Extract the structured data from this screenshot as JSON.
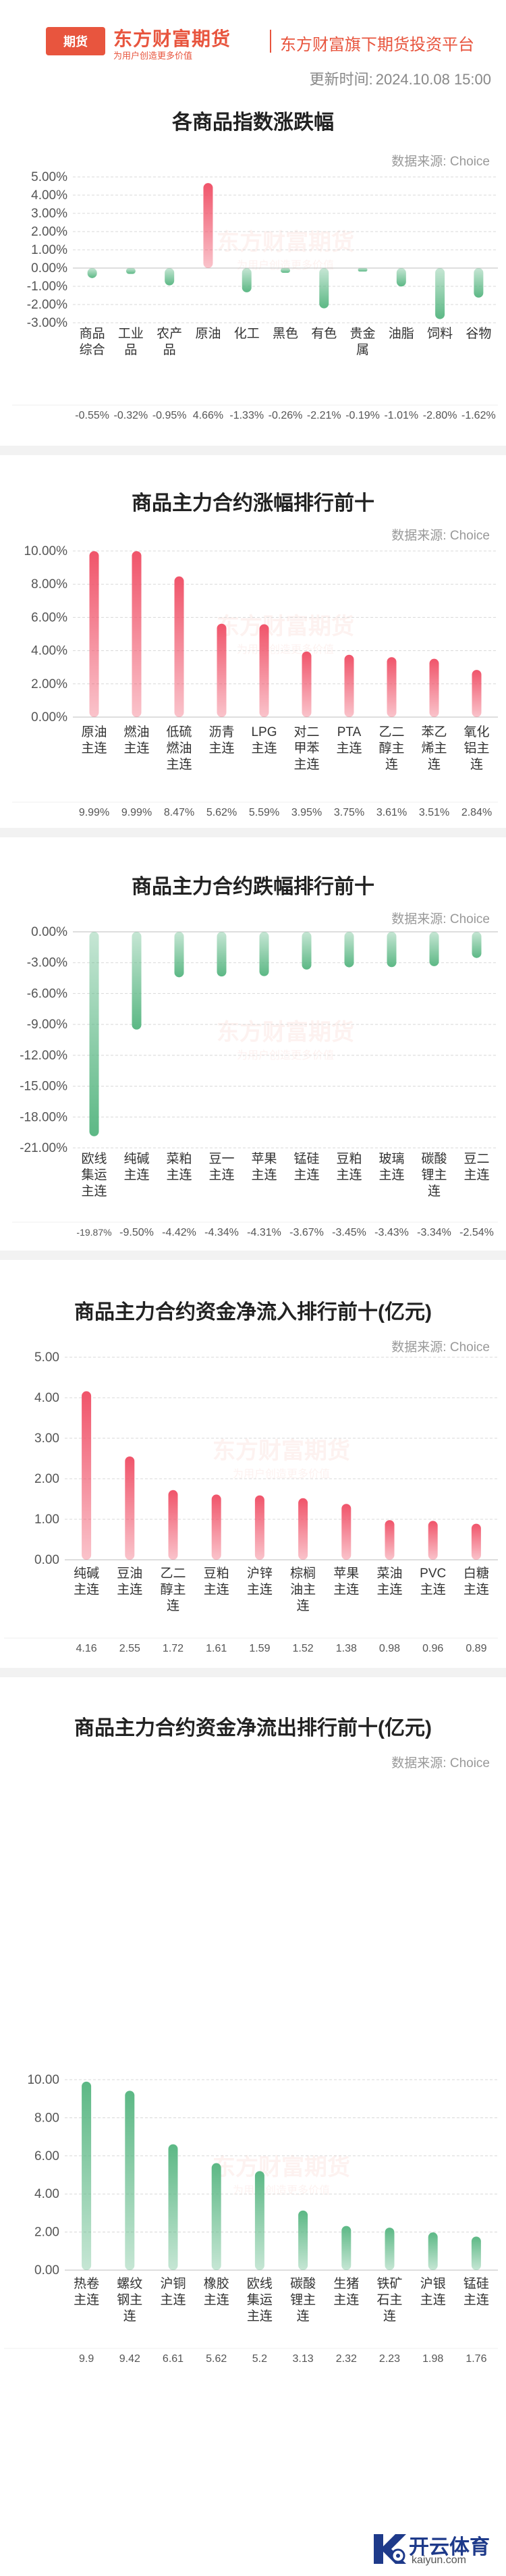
{
  "header": {
    "logo_badge": "期货",
    "brand_name": "东方财富期货",
    "slogan": "为用户创造更多价值",
    "platform": "东方财富旗下期货投资平台",
    "update_label": "更新时间:",
    "update_time": "2024.10.08 15:00"
  },
  "source_label": "数据来源: Choice",
  "watermark": {
    "name": "东方财富期货",
    "sub": "为用户创造更多价值"
  },
  "footer_logo": {
    "text": "开云体育",
    "url": "kaiyun.com"
  },
  "colors": {
    "up": "#f0546a",
    "down": "#5cb885",
    "accent": "#e8553e"
  },
  "chart_data": [
    {
      "type": "bar",
      "title": "各商品指数涨跌幅",
      "categories": [
        "商品\n综合",
        "工业\n品",
        "农产\n品",
        "原油",
        "化工",
        "黑色",
        "有色",
        "贵金\n属",
        "油脂",
        "饲料",
        "谷物"
      ],
      "values": [
        -0.55,
        -0.32,
        -0.95,
        4.66,
        -1.33,
        -0.26,
        -2.21,
        -0.19,
        -1.01,
        -2.8,
        -1.62
      ],
      "value_labels": [
        "-0.55%",
        "-0.32%",
        "-0.95%",
        "4.66%",
        "-1.33%",
        "-0.26%",
        "-2.21%",
        "-0.19%",
        "-1.01%",
        "-2.80%",
        "-1.62%"
      ],
      "yticks": [
        "5.00%",
        "4.00%",
        "3.00%",
        "2.00%",
        "1.00%",
        "0.00%",
        "-1.00%",
        "-2.00%",
        "-3.00%"
      ],
      "ylim": [
        -3,
        5
      ],
      "grid": true
    },
    {
      "type": "bar",
      "title": "商品主力合约涨幅排行前十",
      "categories": [
        "原油\n主连",
        "燃油\n主连",
        "低硫\n燃油\n主连",
        "沥青\n主连",
        "LPG\n主连",
        "对二\n甲苯\n主连",
        "PTA\n主连",
        "乙二\n醇主\n连",
        "苯乙\n烯主\n连",
        "氧化\n铝主\n连"
      ],
      "values": [
        9.99,
        9.99,
        8.47,
        5.62,
        5.59,
        3.95,
        3.75,
        3.61,
        3.51,
        2.84
      ],
      "value_labels": [
        "9.99%",
        "9.99%",
        "8.47%",
        "5.62%",
        "5.59%",
        "3.95%",
        "3.75%",
        "3.61%",
        "3.51%",
        "2.84%"
      ],
      "yticks": [
        "10.00%",
        "8.00%",
        "6.00%",
        "4.00%",
        "2.00%",
        "0.00%"
      ],
      "ylim": [
        0,
        10
      ],
      "grid": true
    },
    {
      "type": "bar",
      "title": "商品主力合约跌幅排行前十",
      "categories": [
        "欧线\n集运\n主连",
        "纯碱\n主连",
        "菜粕\n主连",
        "豆一\n主连",
        "苹果\n主连",
        "锰硅\n主连",
        "豆粕\n主连",
        "玻璃\n主连",
        "碳酸\n锂主\n连",
        "豆二\n主连"
      ],
      "values": [
        -19.87,
        -9.5,
        -4.42,
        -4.34,
        -4.31,
        -3.67,
        -3.45,
        -3.43,
        -3.34,
        -2.54
      ],
      "value_labels": [
        "-19.87%",
        "-9.50%",
        "-4.42%",
        "-4.34%",
        "-4.31%",
        "-3.67%",
        "-3.45%",
        "-3.43%",
        "-3.34%",
        "-2.54%"
      ],
      "yticks": [
        "0.00%",
        "-3.00%",
        "-6.00%",
        "-9.00%",
        "-12.00%",
        "-15.00%",
        "-18.00%",
        "-21.00%"
      ],
      "ylim": [
        -21,
        0
      ],
      "grid": true
    },
    {
      "type": "bar",
      "title": "商品主力合约资金净流入排行前十(亿元)",
      "categories": [
        "纯碱\n主连",
        "豆油\n主连",
        "乙二\n醇主\n连",
        "豆粕\n主连",
        "沪锌\n主连",
        "棕榈\n油主\n连",
        "苹果\n主连",
        "菜油\n主连",
        "PVC\n主连",
        "白糖\n主连"
      ],
      "values": [
        4.16,
        2.55,
        1.72,
        1.61,
        1.59,
        1.52,
        1.38,
        0.98,
        0.96,
        0.89
      ],
      "value_labels": [
        "4.16",
        "2.55",
        "1.72",
        "1.61",
        "1.59",
        "1.52",
        "1.38",
        "0.98",
        "0.96",
        "0.89"
      ],
      "yticks": [
        "5.00",
        "4.00",
        "3.00",
        "2.00",
        "1.00",
        "0.00"
      ],
      "ylim": [
        0,
        5
      ],
      "grid": true
    },
    {
      "type": "bar",
      "title": "商品主力合约资金净流出排行前十(亿元)",
      "categories": [
        "热卷\n主连",
        "螺纹\n钢主\n连",
        "沪铜\n主连",
        "橡胶\n主连",
        "欧线\n集运\n主连",
        "碳酸\n锂主\n连",
        "生猪\n主连",
        "铁矿\n石主\n连",
        "沪银\n主连",
        "锰硅\n主连"
      ],
      "values": [
        9.9,
        9.42,
        6.61,
        5.62,
        5.2,
        3.13,
        2.32,
        2.23,
        1.98,
        1.76
      ],
      "value_labels": [
        "9.9",
        "9.42",
        "6.61",
        "5.62",
        "5.2",
        "3.13",
        "2.32",
        "2.23",
        "1.98",
        "1.76"
      ],
      "yticks": [
        "10.00",
        "8.00",
        "6.00",
        "4.00",
        "2.00",
        "0.00"
      ],
      "ylim": [
        0,
        10
      ],
      "grid": true
    }
  ]
}
